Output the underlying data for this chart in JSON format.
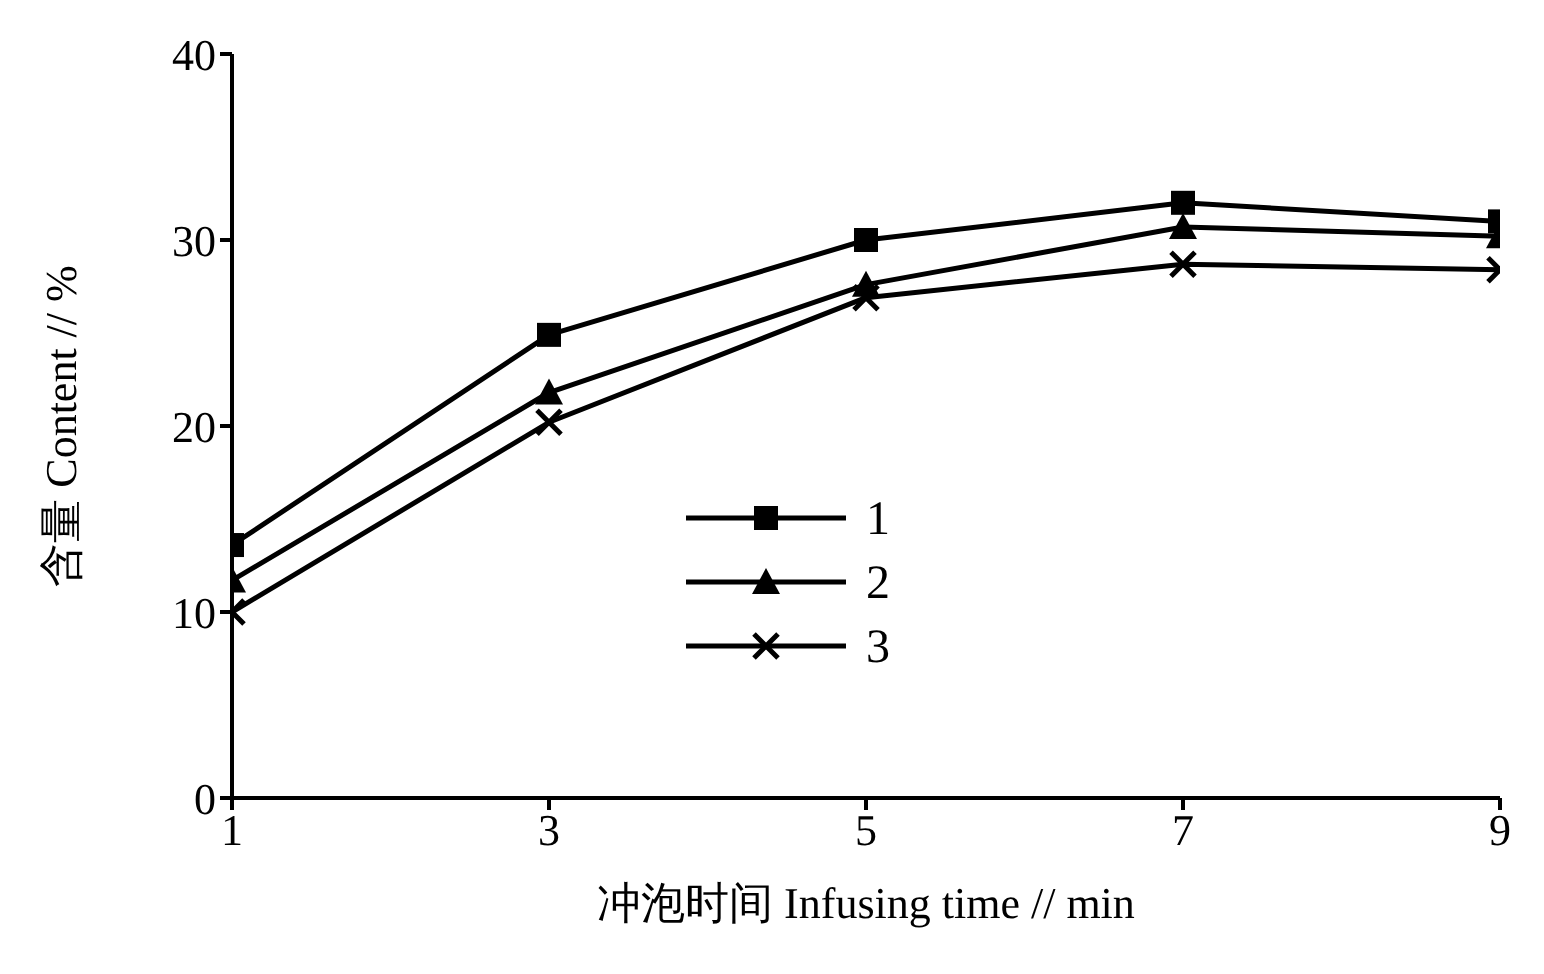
{
  "chart_data": {
    "type": "line",
    "xlabel": "冲泡时间 Infusing time // min",
    "ylabel": "含量 Content // %",
    "x": [
      1,
      3,
      5,
      7,
      9
    ],
    "xlim": [
      1,
      9
    ],
    "xticks": [
      1,
      3,
      5,
      7,
      9
    ],
    "ylim": [
      0,
      40
    ],
    "yticks": [
      0,
      10,
      20,
      30,
      40
    ],
    "grid": false,
    "legend": "center",
    "line_style": "solid",
    "series": [
      {
        "name": "1",
        "color": "#000000",
        "marker": "square",
        "values": [
          13.6,
          24.9,
          30.0,
          32.0,
          31.0
        ]
      },
      {
        "name": "2",
        "color": "#000000",
        "marker": "triangle",
        "values": [
          11.7,
          21.8,
          27.6,
          30.7,
          30.2
        ]
      },
      {
        "name": "3",
        "color": "#000000",
        "marker": "cross",
        "values": [
          10.0,
          20.2,
          26.9,
          28.7,
          28.4
        ]
      }
    ]
  }
}
